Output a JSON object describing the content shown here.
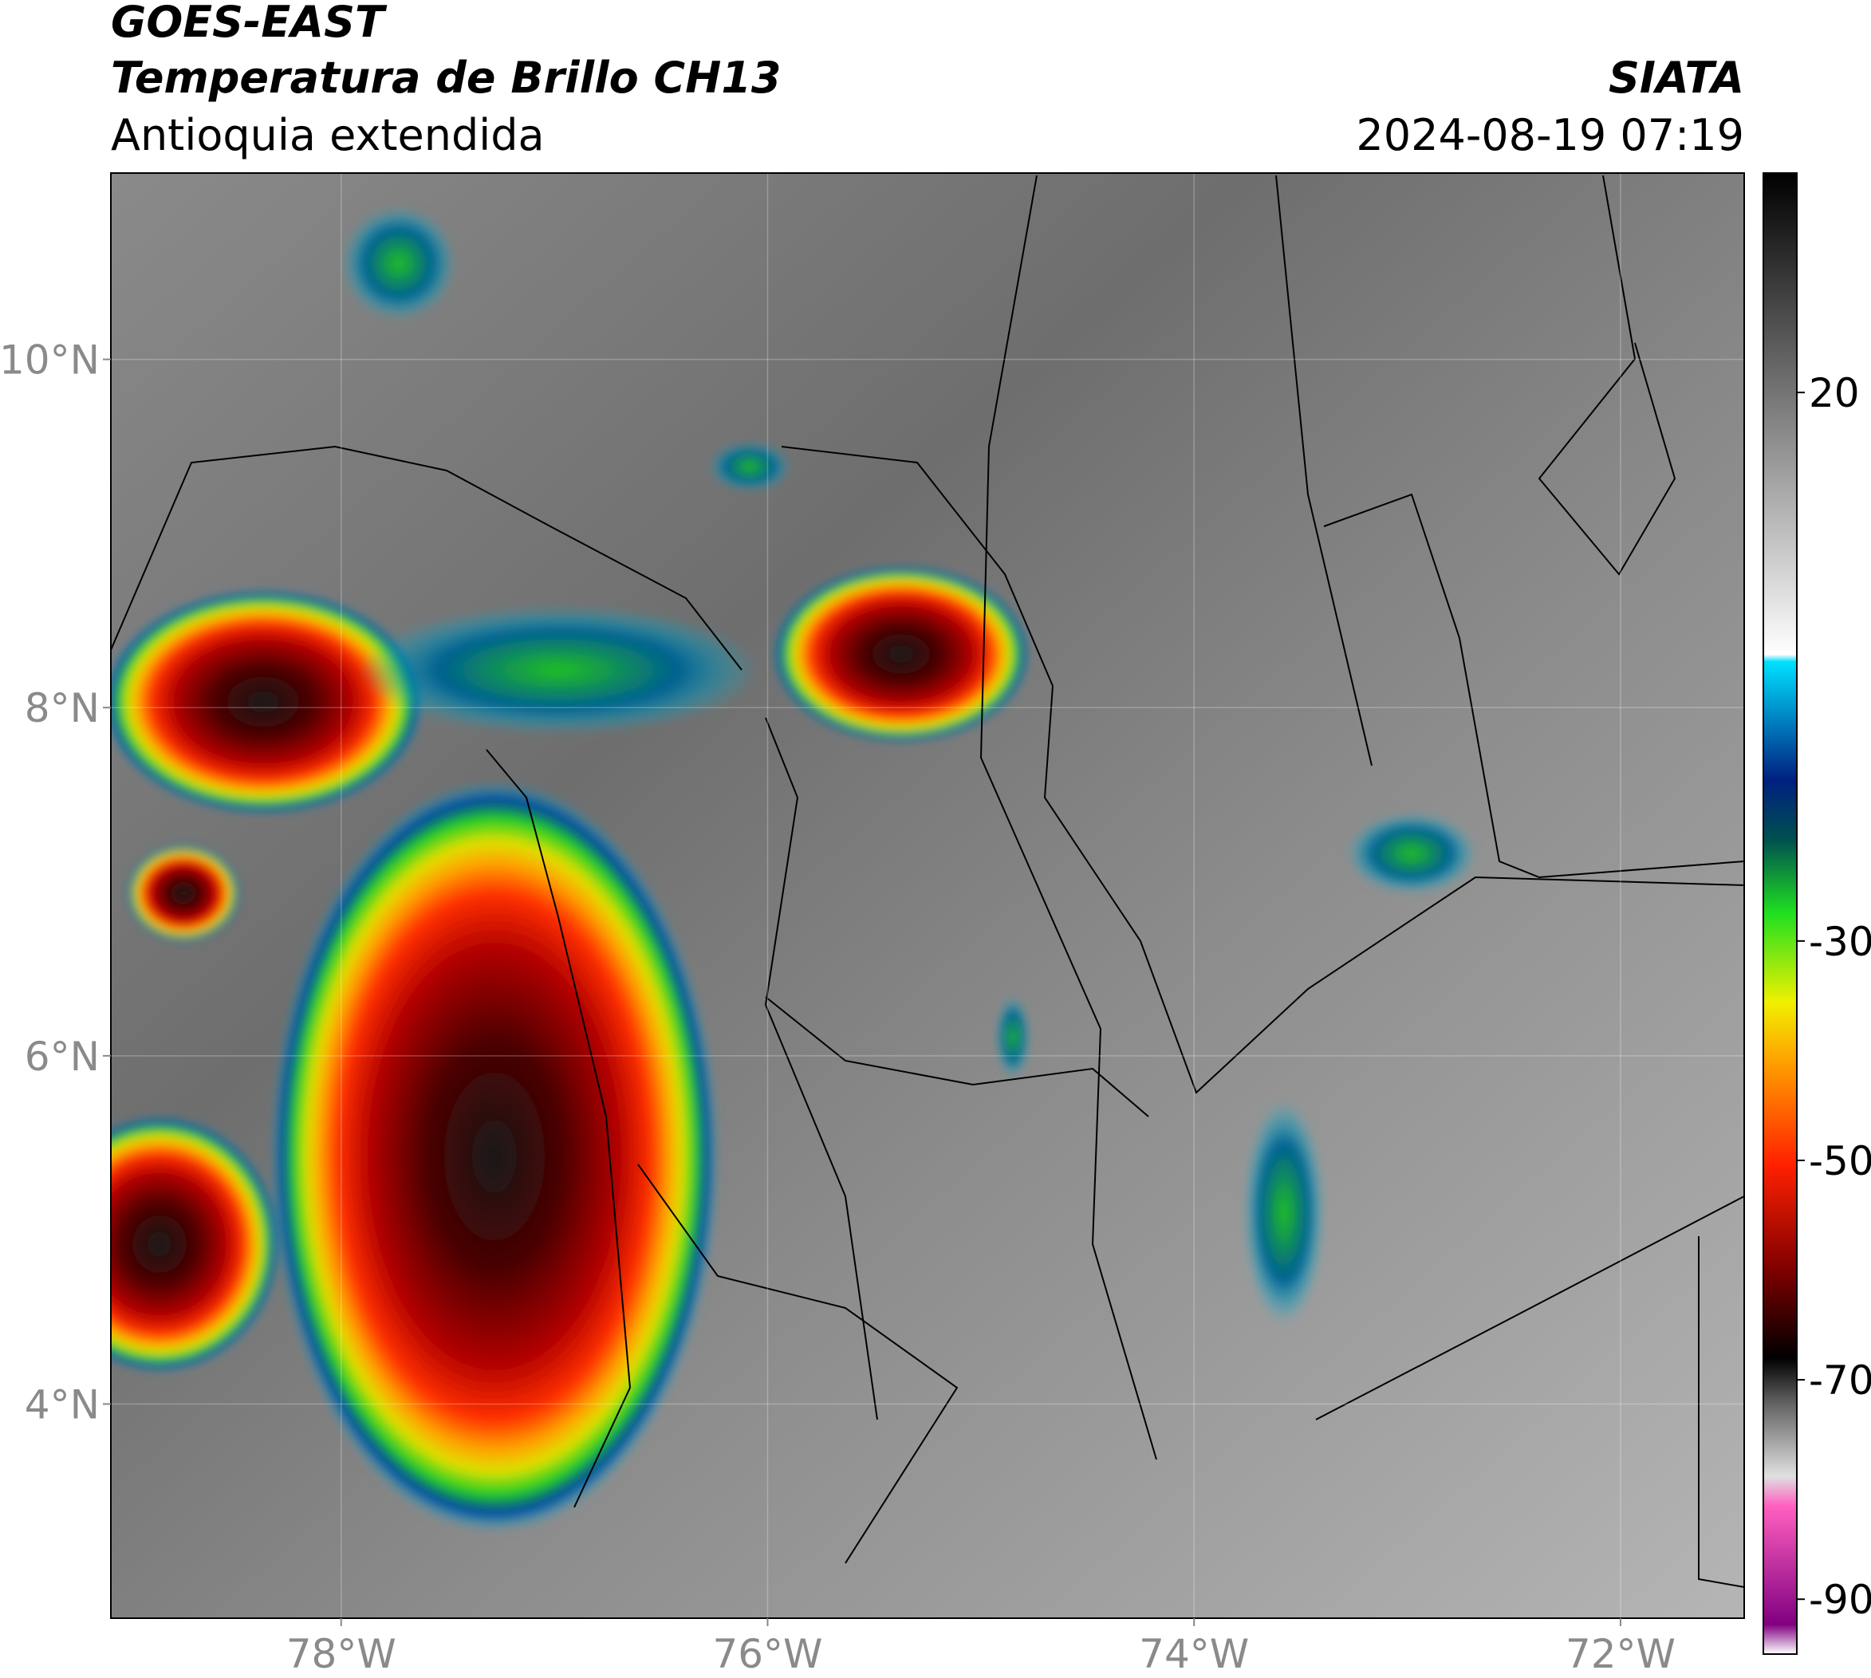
{
  "header": {
    "title": "GOES-EAST",
    "subtitle": "Temperatura de Brillo CH13",
    "region": "Antioquia extendida",
    "agency": "SIATA",
    "datetime": "2024-08-19 07:19"
  },
  "map": {
    "lonlim": [
      -79.08,
      -71.42
    ],
    "latlim": [
      2.77,
      11.07
    ],
    "lon_ticks": [
      {
        "value": -78,
        "label": "78°W"
      },
      {
        "value": -76,
        "label": "76°W"
      },
      {
        "value": -74,
        "label": "74°W"
      },
      {
        "value": -72,
        "label": "72°W"
      }
    ],
    "lat_ticks": [
      {
        "value": 10,
        "label": "10°N"
      },
      {
        "value": 8,
        "label": "8°N"
      },
      {
        "value": 6,
        "label": "6°N"
      },
      {
        "value": 4,
        "label": "4°N"
      }
    ]
  },
  "colorbar": {
    "clim": [
      -95,
      40
    ],
    "ticks": [
      20,
      -30,
      -50,
      -70,
      -90
    ]
  }
}
